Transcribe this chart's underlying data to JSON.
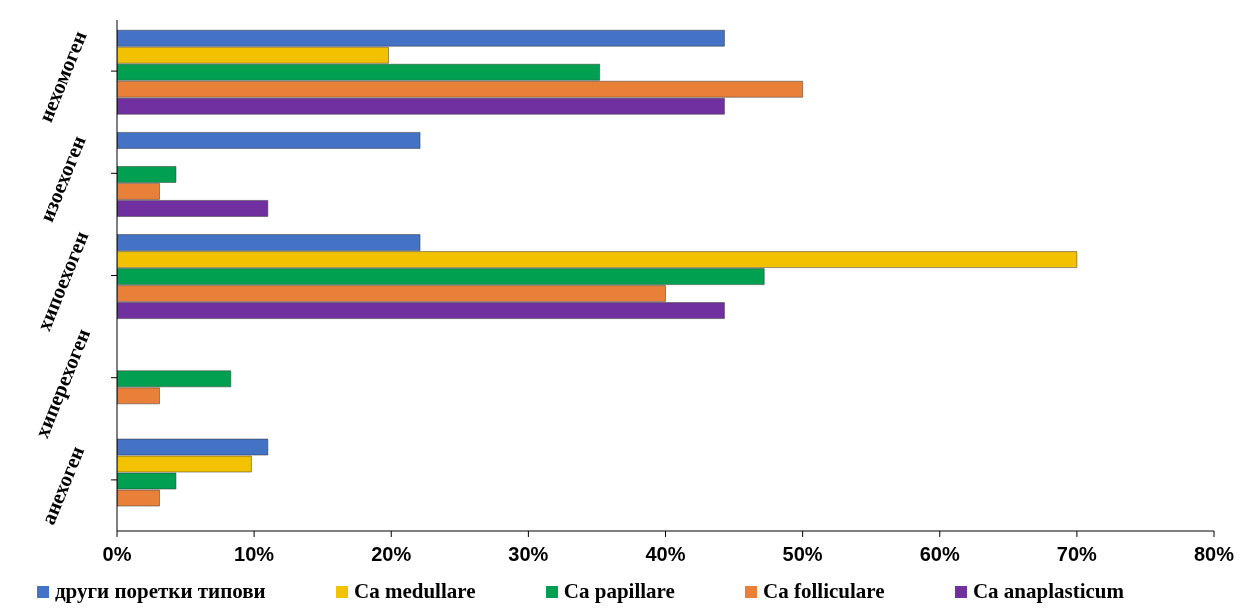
{
  "chart_data": {
    "type": "bar",
    "orientation": "horizontal",
    "categories": [
      "нехомоген",
      "изоехоген",
      "хипоехоген",
      "хиперехоген",
      "анехоген"
    ],
    "series": [
      {
        "name": "други поретки типови",
        "color": "#4472c4",
        "values": [
          44.3,
          22.1,
          22.1,
          null,
          11.0
        ]
      },
      {
        "name": "Ca medullare",
        "color": "#f2c200",
        "values": [
          19.8,
          null,
          70,
          null,
          9.8
        ]
      },
      {
        "name": "Ca papillare",
        "color": "#00a050",
        "values": [
          35.2,
          4.3,
          47.2,
          8.3,
          4.3
        ]
      },
      {
        "name": "Ca folliculare",
        "color": "#e8803a",
        "values": [
          50,
          3.1,
          40,
          3.1,
          3.1
        ]
      },
      {
        "name": "Ca anaplasticum",
        "color": "#7030a0",
        "values": [
          44.3,
          11.0,
          44.3,
          null,
          null
        ]
      }
    ],
    "xlim": [
      0,
      80
    ],
    "xticks": [
      {
        "value": 0,
        "label": "0%"
      },
      {
        "value": 10,
        "label": "10%"
      },
      {
        "value": 20,
        "label": "20%"
      },
      {
        "value": 30,
        "label": "30%"
      },
      {
        "value": 40,
        "label": "40%"
      },
      {
        "value": 50,
        "label": "50%"
      },
      {
        "value": 60,
        "label": "60%"
      },
      {
        "value": 70,
        "label": "70%"
      },
      {
        "value": 80,
        "label": "80%"
      }
    ],
    "grid": false,
    "legend": "bottom"
  }
}
